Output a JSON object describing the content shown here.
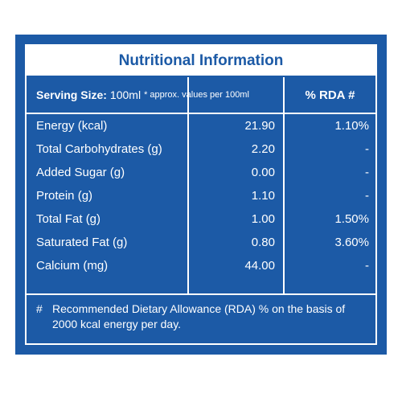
{
  "title": "Nutritional Information",
  "serving": {
    "label": "Serving Size:",
    "value": "100ml",
    "note": "* approx. values per 100ml"
  },
  "rda_header": "% RDA #",
  "nutrients": [
    {
      "name": "Energy (kcal)",
      "value": "21.90",
      "rda": "1.10%"
    },
    {
      "name": "Total Carbohydrates (g)",
      "value": "2.20",
      "rda": "-"
    },
    {
      "name": "Added Sugar (g)",
      "value": "0.00",
      "rda": "-"
    },
    {
      "name": "Protein (g)",
      "value": "1.10",
      "rda": "-"
    },
    {
      "name": "Total Fat (g)",
      "value": "1.00",
      "rda": "1.50%"
    },
    {
      "name": "Saturated Fat (g)",
      "value": "0.80",
      "rda": "3.60%"
    },
    {
      "name": "Calcium (mg)",
      "value": "44.00",
      "rda": "-"
    }
  ],
  "footnote": {
    "symbol": "#",
    "text": "Recommended Dietary Allowance (RDA) % on the basis of 2000 kcal energy per day."
  },
  "colors": {
    "panel_blue": "#1c5aa6",
    "text_white": "#ffffff"
  }
}
